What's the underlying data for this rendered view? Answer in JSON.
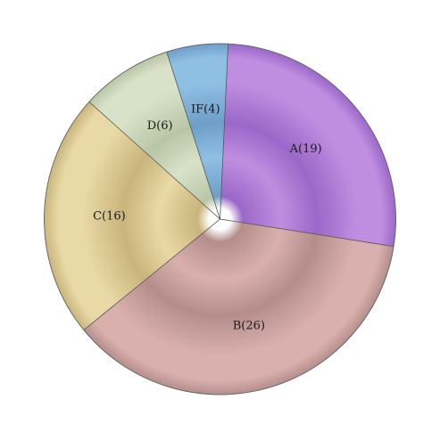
{
  "chart_data": {
    "type": "pie",
    "title": "",
    "categories": [
      "A",
      "B",
      "C",
      "D",
      "IF"
    ],
    "values": [
      19,
      26,
      16,
      6,
      4
    ],
    "labels": [
      "A(19)",
      "B(26)",
      "C(16)",
      "D(6)",
      "IF(4)"
    ],
    "colors": [
      "#c08ee0",
      "#d9b0ae",
      "#e9d9a6",
      "#d8e2c8",
      "#8fbfe3"
    ],
    "dark_colors": [
      "#9a68c8",
      "#b58e8c",
      "#c9b57c",
      "#b9c6a6",
      "#6f9fc8"
    ],
    "start": "top, clockwise",
    "legend": "none",
    "shading": "3d-radial"
  }
}
